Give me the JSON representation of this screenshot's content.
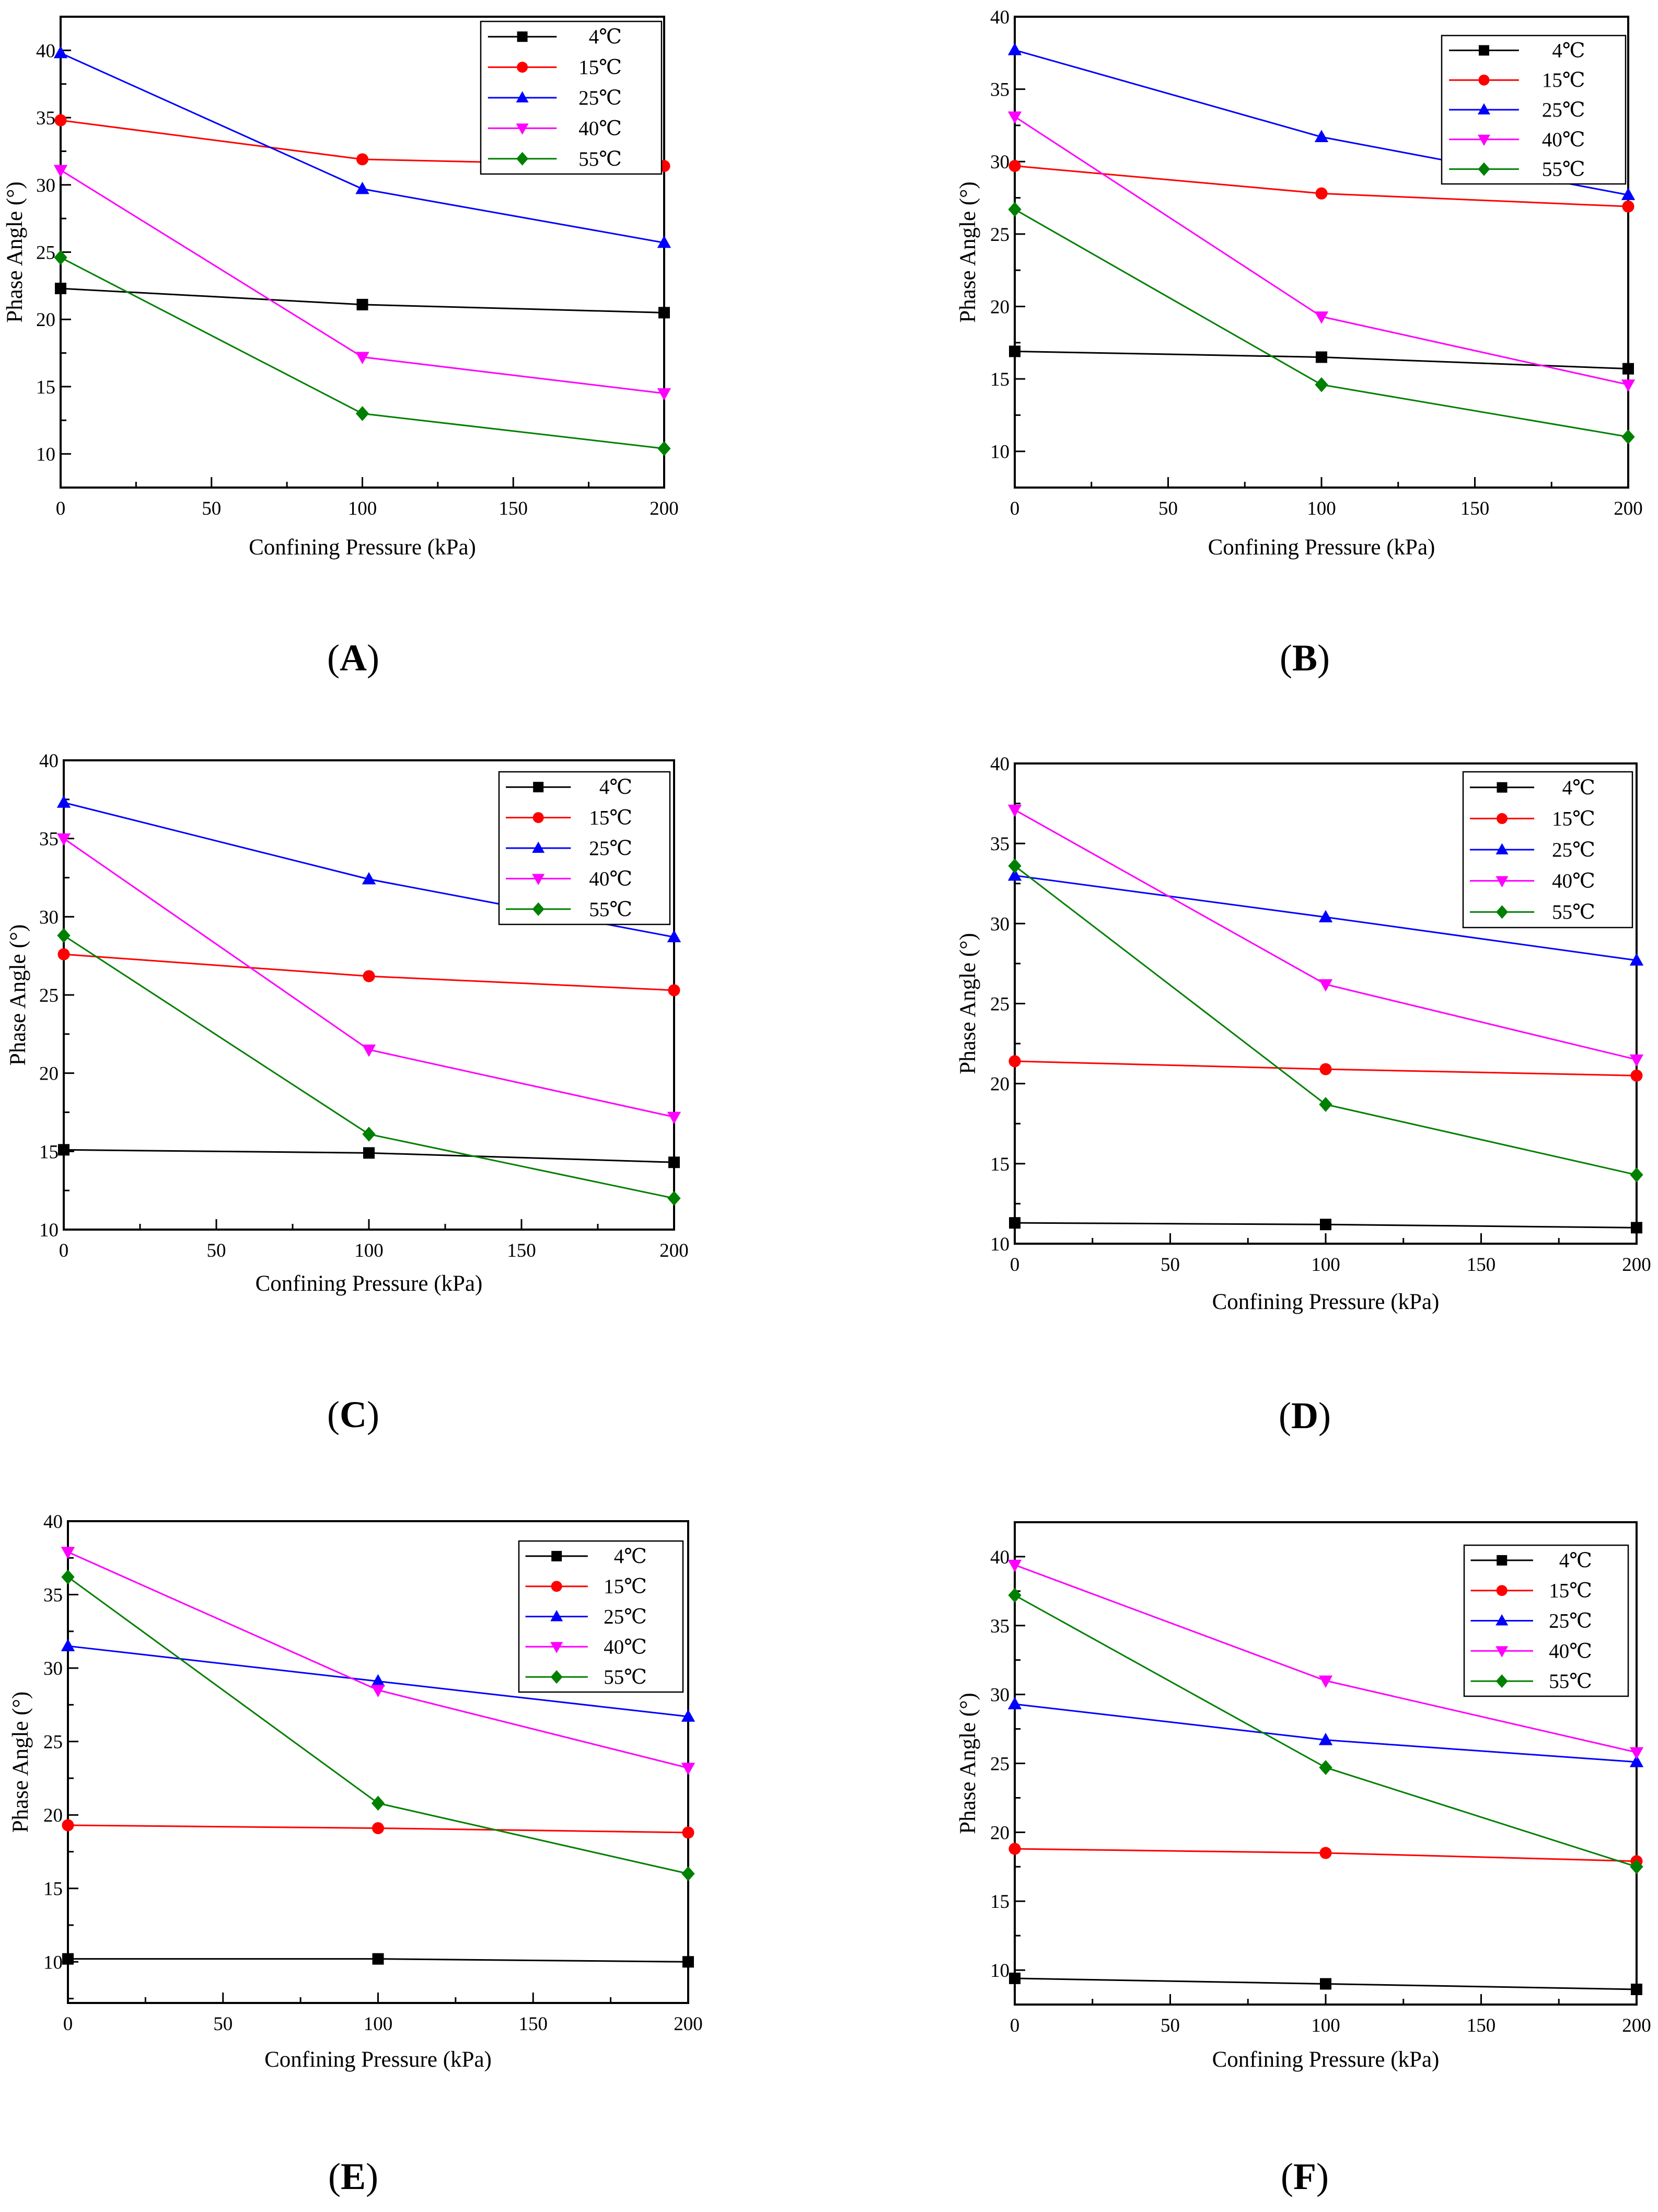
{
  "chart_data": [
    {
      "type": "line",
      "caption": {
        "prefix": "(",
        "label": "A",
        "suffix": ")"
      },
      "xlabel": "Confining Pressure (kPa)",
      "ylabel": "Phase Angle (°)",
      "x": [
        0,
        100,
        200
      ],
      "xlim": [
        0,
        200
      ],
      "ylim": [
        7.5,
        42.5
      ],
      "xticks": [
        0,
        50,
        100,
        150,
        200
      ],
      "yticks": [
        10,
        15,
        20,
        25,
        30,
        35,
        40
      ],
      "legend": "top-right",
      "grid": false,
      "series": [
        {
          "name": "4℃",
          "values": [
            22.3,
            21.1,
            20.5
          ],
          "color": "#000000",
          "marker": "square"
        },
        {
          "name": "15℃",
          "values": [
            34.8,
            31.9,
            31.4
          ],
          "color": "#ff0000",
          "marker": "circle"
        },
        {
          "name": "25℃",
          "values": [
            39.8,
            29.7,
            25.7
          ],
          "color": "#0000ff",
          "marker": "triangle-up"
        },
        {
          "name": "40℃",
          "values": [
            31.1,
            17.2,
            14.5
          ],
          "color": "#ff00ff",
          "marker": "triangle-down"
        },
        {
          "name": "55℃",
          "values": [
            24.6,
            13.0,
            10.4
          ],
          "color": "#008000",
          "marker": "diamond"
        }
      ]
    },
    {
      "type": "line",
      "caption": {
        "prefix": "(",
        "label": "B",
        "suffix": ")"
      },
      "xlabel": "Confining Pressure (kPa)",
      "ylabel": "Phase Angle (°)",
      "x": [
        0,
        100,
        200
      ],
      "xlim": [
        0,
        200
      ],
      "ylim": [
        7.5,
        40
      ],
      "xticks": [
        0,
        50,
        100,
        150,
        200
      ],
      "yticks": [
        10,
        15,
        20,
        25,
        30,
        35,
        40
      ],
      "legend": "top-right",
      "grid": false,
      "series": [
        {
          "name": "4℃",
          "values": [
            16.9,
            16.5,
            15.7
          ],
          "color": "#000000",
          "marker": "square"
        },
        {
          "name": "15℃",
          "values": [
            29.7,
            27.8,
            26.9
          ],
          "color": "#ff0000",
          "marker": "circle"
        },
        {
          "name": "25℃",
          "values": [
            37.7,
            31.7,
            27.7
          ],
          "color": "#0000ff",
          "marker": "triangle-up"
        },
        {
          "name": "40℃",
          "values": [
            33.1,
            19.3,
            14.6
          ],
          "color": "#ff00ff",
          "marker": "triangle-down"
        },
        {
          "name": "55℃",
          "values": [
            26.7,
            14.6,
            11.0
          ],
          "color": "#008000",
          "marker": "diamond"
        }
      ]
    },
    {
      "type": "line",
      "caption": {
        "prefix": "(",
        "label": "C",
        "suffix": ")"
      },
      "xlabel": "Confining Pressure (kPa)",
      "ylabel": "Phase Angle (°)",
      "x": [
        0,
        100,
        200
      ],
      "xlim": [
        0,
        200
      ],
      "ylim": [
        10,
        40
      ],
      "xticks": [
        0,
        50,
        100,
        150,
        200
      ],
      "yticks": [
        10,
        15,
        20,
        25,
        30,
        35,
        40
      ],
      "legend": "top-right",
      "grid": false,
      "series": [
        {
          "name": "4℃",
          "values": [
            15.1,
            14.9,
            14.3
          ],
          "color": "#000000",
          "marker": "square"
        },
        {
          "name": "15℃",
          "values": [
            27.6,
            26.2,
            25.3
          ],
          "color": "#ff0000",
          "marker": "circle"
        },
        {
          "name": "25℃",
          "values": [
            37.3,
            32.4,
            28.7
          ],
          "color": "#0000ff",
          "marker": "triangle-up"
        },
        {
          "name": "40℃",
          "values": [
            35.0,
            21.5,
            17.2
          ],
          "color": "#ff00ff",
          "marker": "triangle-down"
        },
        {
          "name": "55℃",
          "values": [
            28.8,
            16.1,
            12.0
          ],
          "color": "#008000",
          "marker": "diamond"
        }
      ]
    },
    {
      "type": "line",
      "caption": {
        "prefix": "(",
        "label": "D",
        "suffix": ")"
      },
      "xlabel": "Confining Pressure (kPa)",
      "ylabel": "Phase Angle (°)",
      "x": [
        0,
        100,
        200
      ],
      "xlim": [
        0,
        200
      ],
      "ylim": [
        10,
        40
      ],
      "xticks": [
        0,
        50,
        100,
        150,
        200
      ],
      "yticks": [
        10,
        15,
        20,
        25,
        30,
        35,
        40
      ],
      "legend": "top-right",
      "grid": false,
      "series": [
        {
          "name": "4℃",
          "values": [
            11.3,
            11.2,
            11.0
          ],
          "color": "#000000",
          "marker": "square"
        },
        {
          "name": "15℃",
          "values": [
            21.4,
            20.9,
            20.5
          ],
          "color": "#ff0000",
          "marker": "circle"
        },
        {
          "name": "25℃",
          "values": [
            33.0,
            30.4,
            27.7
          ],
          "color": "#0000ff",
          "marker": "triangle-up"
        },
        {
          "name": "40℃",
          "values": [
            37.1,
            26.2,
            21.5
          ],
          "color": "#ff00ff",
          "marker": "triangle-down"
        },
        {
          "name": "55℃",
          "values": [
            33.6,
            18.7,
            14.3
          ],
          "color": "#008000",
          "marker": "diamond"
        }
      ]
    },
    {
      "type": "line",
      "caption": {
        "prefix": "(",
        "label": "E",
        "suffix": ")"
      },
      "xlabel": "Confining Pressure (kPa)",
      "ylabel": "Phase Angle (°)",
      "x": [
        0,
        100,
        200
      ],
      "xlim": [
        0,
        200
      ],
      "ylim": [
        7.2,
        40
      ],
      "xticks": [
        0,
        50,
        100,
        150,
        200
      ],
      "yticks": [
        10,
        15,
        20,
        25,
        30,
        35,
        40
      ],
      "legend": "top-right",
      "grid": false,
      "series": [
        {
          "name": "4℃",
          "values": [
            10.2,
            10.2,
            10.0
          ],
          "color": "#000000",
          "marker": "square"
        },
        {
          "name": "15℃",
          "values": [
            19.3,
            19.1,
            18.8
          ],
          "color": "#ff0000",
          "marker": "circle"
        },
        {
          "name": "25℃",
          "values": [
            31.5,
            29.1,
            26.7
          ],
          "color": "#0000ff",
          "marker": "triangle-up"
        },
        {
          "name": "40℃",
          "values": [
            37.9,
            28.5,
            23.2
          ],
          "color": "#ff00ff",
          "marker": "triangle-down"
        },
        {
          "name": "55℃",
          "values": [
            36.2,
            20.8,
            16.0
          ],
          "color": "#008000",
          "marker": "diamond"
        }
      ]
    },
    {
      "type": "line",
      "caption": {
        "prefix": "(",
        "label": "F",
        "suffix": ")"
      },
      "xlabel": "Confining Pressure (kPa)",
      "ylabel": "Phase Angle (°)",
      "x": [
        0,
        100,
        200
      ],
      "xlim": [
        0,
        200
      ],
      "ylim": [
        7.5,
        42.5
      ],
      "xticks": [
        0,
        50,
        100,
        150,
        200
      ],
      "yticks": [
        10,
        15,
        20,
        25,
        30,
        35,
        40
      ],
      "legend": "top-right",
      "grid": false,
      "series": [
        {
          "name": "4℃",
          "values": [
            9.4,
            9.0,
            8.6
          ],
          "color": "#000000",
          "marker": "square"
        },
        {
          "name": "15℃",
          "values": [
            18.8,
            18.5,
            17.9
          ],
          "color": "#ff0000",
          "marker": "circle"
        },
        {
          "name": "25℃",
          "values": [
            29.3,
            26.7,
            25.1
          ],
          "color": "#0000ff",
          "marker": "triangle-up"
        },
        {
          "name": "40℃",
          "values": [
            39.4,
            31.0,
            25.8
          ],
          "color": "#ff00ff",
          "marker": "triangle-down"
        },
        {
          "name": "55℃",
          "values": [
            37.2,
            24.7,
            17.5
          ],
          "color": "#008000",
          "marker": "diamond"
        }
      ]
    }
  ]
}
